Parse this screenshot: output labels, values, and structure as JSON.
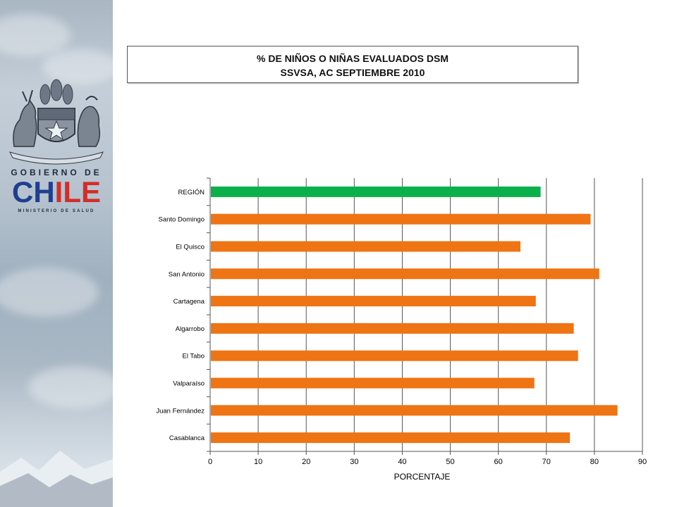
{
  "branding": {
    "gobierno_de": "GOBIERNO DE",
    "chile_letters": [
      "C",
      "H",
      "I",
      "L",
      "E"
    ],
    "ministerio": "MINISTERIO DE SALUD",
    "colors": {
      "blue": "#1f3f8f",
      "red": "#d32d2a",
      "navy": "#1f2a3a"
    }
  },
  "title": {
    "line1": "% DE NIÑOS O NIÑAS EVALUADOS DSM",
    "line2": "SSVSA, AC SEPTIEMBRE 2010"
  },
  "chart_data": {
    "type": "bar",
    "orientation": "horizontal",
    "categories": [
      "REGIÓN",
      "Santo Domingo",
      "El Quisco",
      "San Antonio",
      "Cartagena",
      "Algarrobo",
      "El Tabo",
      "Valparaíso",
      "Juan Fernández",
      "Casablanca"
    ],
    "values": [
      68.8,
      79.2,
      64.6,
      81.0,
      67.8,
      75.7,
      76.6,
      67.5,
      84.8,
      74.9
    ],
    "bar_colors": [
      "#0bb04b",
      "#ef7414",
      "#ef7414",
      "#ef7414",
      "#ef7414",
      "#ef7414",
      "#ef7414",
      "#ef7414",
      "#ef7414",
      "#ef7414"
    ],
    "xlabel": "PORCENTAJE",
    "ylabel": "",
    "xlim": [
      0,
      90
    ],
    "xticks": [
      0,
      10,
      20,
      30,
      40,
      50,
      60,
      70,
      80,
      90
    ],
    "grid": "vertical"
  }
}
